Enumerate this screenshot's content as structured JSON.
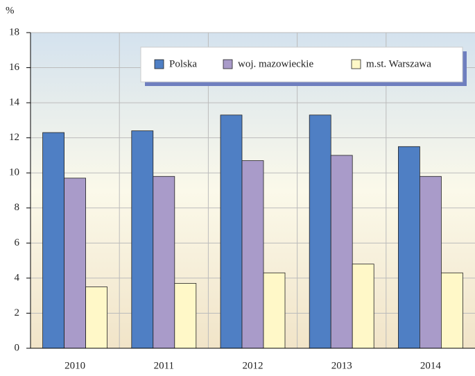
{
  "chart_data": {
    "type": "bar",
    "ylabel": "%",
    "categories": [
      "2010",
      "2011",
      "2012",
      "2013",
      "2014"
    ],
    "series": [
      {
        "name": "Polska",
        "color": "#4f7fc4",
        "values": [
          12.3,
          12.4,
          13.3,
          13.3,
          11.5
        ]
      },
      {
        "name": "woj. mazowieckie",
        "color": "#a99bc9",
        "values": [
          9.7,
          9.8,
          10.7,
          11.0,
          9.8
        ]
      },
      {
        "name": "m.st. Warszawa",
        "color": "#fff8c8",
        "values": [
          3.5,
          3.7,
          4.3,
          4.8,
          4.3
        ]
      }
    ],
    "ylim": [
      0,
      18
    ],
    "yticks": [
      0,
      2,
      4,
      6,
      8,
      10,
      12,
      14,
      16,
      18
    ],
    "grid": true,
    "legend": "top-right"
  }
}
